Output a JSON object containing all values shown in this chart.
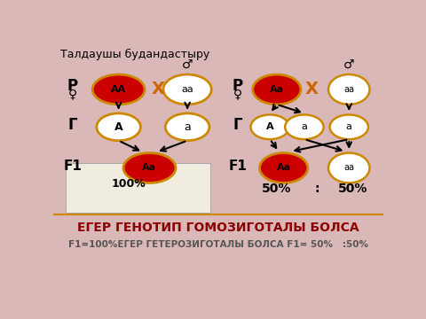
{
  "bg_color": "#dbb8b8",
  "title": "Талдаушы будандастыру",
  "bottom_text1": "ЕГЕР ГЕНОТИП ГОМОЗИГОТАЛЫ БОЛСА",
  "bottom_text2": "F1=100%ЕГЕР ГЕТЕРОЗИГОТАЛЫ БОЛСА F1= 50%   :50%",
  "red_color": "#cc0000",
  "white_color": "#ffffff",
  "gold_border": "#cc8800",
  "cross_color": "#cc6600",
  "dark_red": "#7B0000"
}
